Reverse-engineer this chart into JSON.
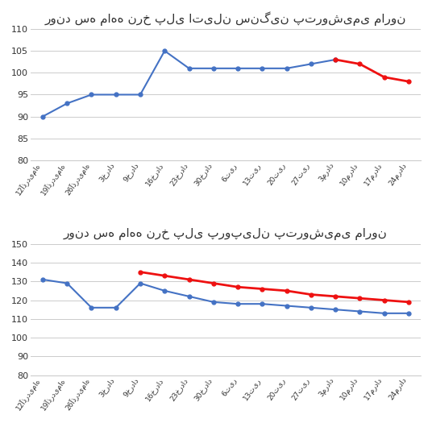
{
  "chart1_title": "روند سه ماهه نرخ پلی اتیلن سنگین پتروشیمی مارون",
  "chart2_title": "روند سه ماهه نرخ پلی پروپیلن پتروشیمی مارون",
  "x_labels": [
    "12آذردیماه",
    "19آذردیماه",
    "26آذردیماه",
    "3خرداد",
    "9خرداد",
    "16خرداد",
    "23خرداد",
    "30خرداد",
    "6تیر",
    "13تیر",
    "20تیر",
    "27تیر",
    "3مرداد",
    "10مرداد",
    "17مرداد",
    "24مرداد"
  ],
  "chart1_blue_y": [
    90,
    93,
    95,
    95,
    95,
    105,
    101,
    101,
    101,
    101,
    101,
    102,
    103,
    null,
    null,
    null
  ],
  "chart1_red_y": [
    null,
    null,
    null,
    null,
    null,
    null,
    null,
    null,
    null,
    null,
    null,
    null,
    103,
    102,
    99,
    98
  ],
  "chart1_ylim": [
    80,
    110
  ],
  "chart1_yticks": [
    80,
    85,
    90,
    95,
    100,
    105,
    110
  ],
  "chart2_blue_y": [
    131,
    129,
    116,
    116,
    129,
    125,
    122,
    119,
    118,
    118,
    117,
    116,
    115,
    114,
    113,
    113
  ],
  "chart2_red_y": [
    null,
    null,
    null,
    null,
    135,
    133,
    131,
    129,
    127,
    126,
    125,
    123,
    122,
    121,
    120,
    119
  ],
  "chart2_ylim": [
    80,
    150
  ],
  "chart2_yticks": [
    80,
    90,
    100,
    110,
    120,
    130,
    140,
    150
  ],
  "blue_color": "#4472C4",
  "red_color": "#EE1111",
  "bg_color": "#FFFFFF",
  "grid_color": "#CCCCCC",
  "text_color": "#333333",
  "title_fontsize": 11,
  "tick_fontsize": 8,
  "xlabel_fontsize": 6.5
}
